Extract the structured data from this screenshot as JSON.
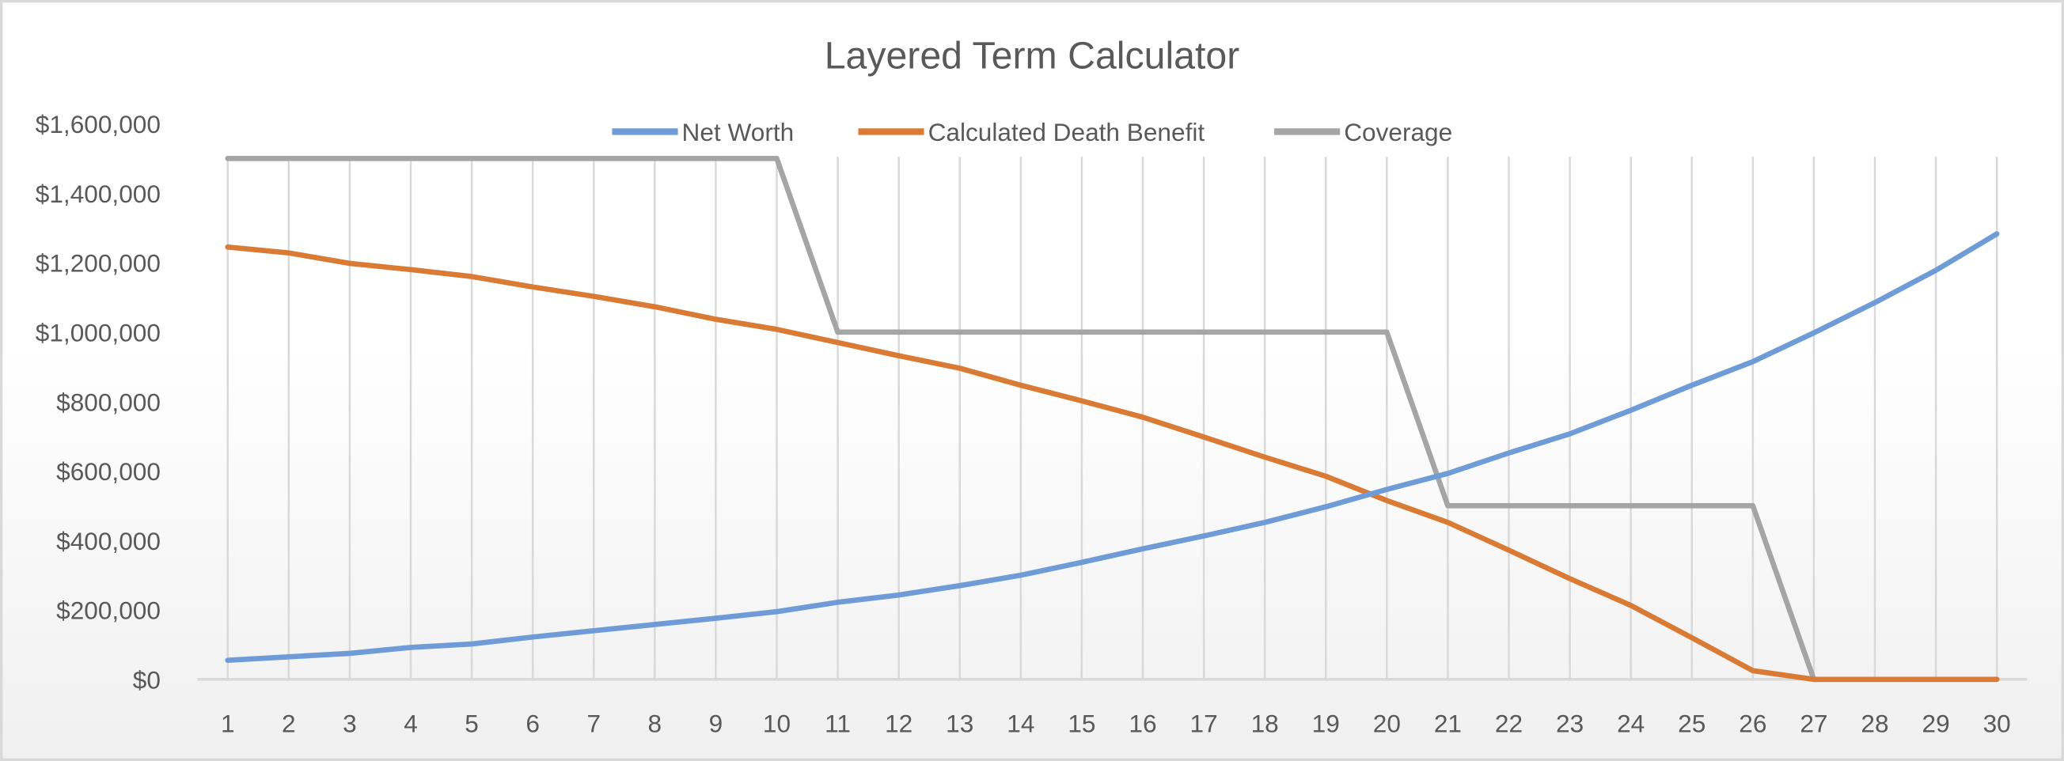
{
  "chart_data": {
    "type": "line",
    "title": "Layered Term Calculator",
    "xlabel": "",
    "ylabel": "",
    "x": [
      1,
      2,
      3,
      4,
      5,
      6,
      7,
      8,
      9,
      10,
      11,
      12,
      13,
      14,
      15,
      16,
      17,
      18,
      19,
      20,
      21,
      22,
      23,
      24,
      25,
      26,
      27,
      28,
      29,
      30
    ],
    "ylim": [
      0,
      1600000
    ],
    "yticks": [
      0,
      200000,
      400000,
      600000,
      800000,
      1000000,
      1200000,
      1400000,
      1600000
    ],
    "ytick_labels": [
      "$0",
      "$200,000",
      "$400,000",
      "$600,000",
      "$800,000",
      "$1,000,000",
      "$1,200,000",
      "$1,400,000",
      "$1,600,000"
    ],
    "grid": "vertical",
    "legend_position": "top",
    "series": [
      {
        "name": "Net Worth",
        "color": "#6F9BD6",
        "values": [
          55000,
          65000,
          75000,
          92000,
          102000,
          122000,
          140000,
          158000,
          176000,
          195000,
          222000,
          243000,
          270000,
          300000,
          337000,
          376000,
          413000,
          452000,
          497000,
          547000,
          593000,
          652000,
          707000,
          775000,
          847000,
          915000,
          998000,
          1085000,
          1178000,
          1283000
        ]
      },
      {
        "name": "Calculated Death Benefit",
        "color": "#D97B35",
        "values": [
          1245000,
          1228000,
          1198000,
          1180000,
          1160000,
          1130000,
          1103000,
          1073000,
          1037000,
          1008000,
          970000,
          932000,
          896000,
          847000,
          802000,
          755000,
          698000,
          640000,
          585000,
          515000,
          452000,
          372000,
          290000,
          213000,
          120000,
          25000,
          0,
          0,
          0,
          0
        ]
      },
      {
        "name": "Coverage",
        "color": "#A5A5A5",
        "values": [
          1500000,
          1500000,
          1500000,
          1500000,
          1500000,
          1500000,
          1500000,
          1500000,
          1500000,
          1500000,
          1000000,
          1000000,
          1000000,
          1000000,
          1000000,
          1000000,
          1000000,
          1000000,
          1000000,
          1000000,
          500000,
          500000,
          500000,
          500000,
          500000,
          500000,
          0,
          0,
          0,
          0
        ]
      }
    ]
  }
}
